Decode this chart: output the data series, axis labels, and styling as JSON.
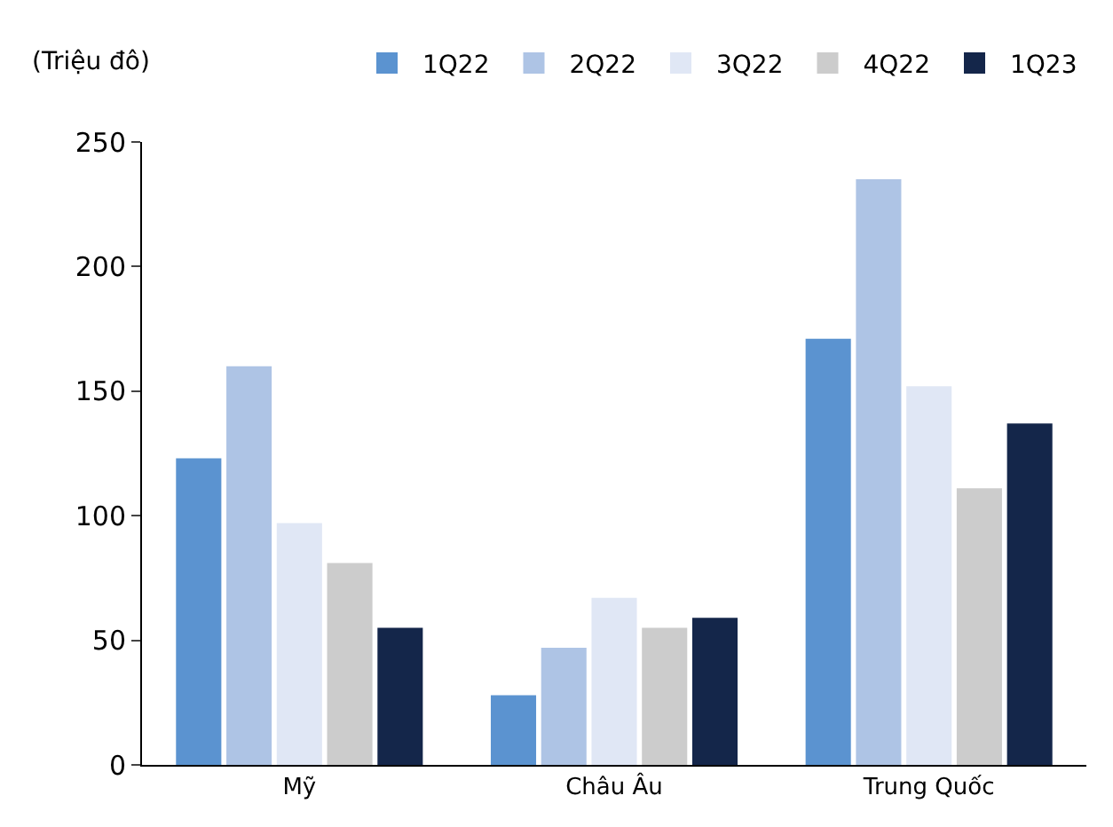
{
  "chart_data": {
    "type": "bar",
    "ylabel": "(Triệu đô)",
    "categories": [
      "Mỹ",
      "Châu Âu",
      "Trung Quốc"
    ],
    "series": [
      {
        "name": "1Q22",
        "color": "#5b93d0",
        "values": [
          123,
          28,
          171
        ]
      },
      {
        "name": "2Q22",
        "color": "#aec4e5",
        "values": [
          160,
          47,
          235
        ]
      },
      {
        "name": "3Q22",
        "color": "#e0e7f5",
        "values": [
          97,
          67,
          152
        ]
      },
      {
        "name": "4Q22",
        "color": "#cccccc",
        "values": [
          81,
          55,
          111
        ]
      },
      {
        "name": "1Q23",
        "color": "#14264a",
        "values": [
          55,
          59,
          137
        ]
      }
    ],
    "ylim": [
      0,
      250
    ],
    "yticks": [
      0,
      50,
      100,
      150,
      200,
      250
    ],
    "grid": false,
    "legend": "top right"
  }
}
